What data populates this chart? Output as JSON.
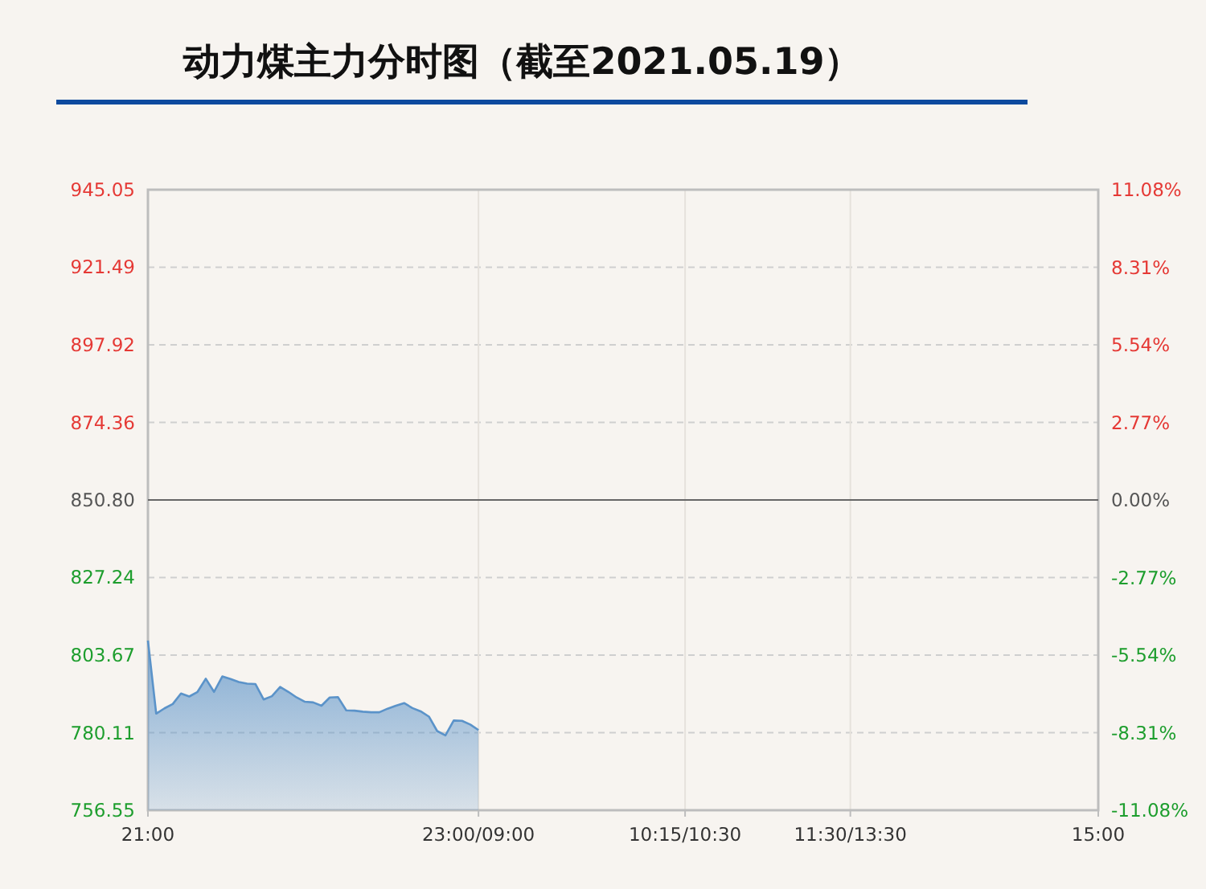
{
  "chart_data": {
    "type": "area",
    "title": "动力煤主力分时图（截至2021.05.19）",
    "categories": [
      "21:00",
      null,
      null,
      null,
      null,
      null,
      null,
      null,
      null,
      null,
      null,
      null,
      null,
      null,
      null,
      null,
      null,
      null,
      null,
      null,
      null,
      null,
      null,
      null,
      null,
      null,
      null,
      null,
      null,
      null,
      null,
      null,
      null,
      null,
      null,
      null,
      null,
      null,
      null,
      null,
      "23:00/09:00",
      null,
      null,
      null,
      null,
      null,
      null,
      null,
      null,
      null,
      null,
      null,
      null,
      null,
      null,
      null,
      null,
      null,
      null,
      null,
      null,
      null,
      null,
      null,
      null,
      "10:15/10:30",
      null,
      null,
      null,
      null,
      null,
      null,
      null,
      null,
      null,
      null,
      null,
      null,
      null,
      null,
      null,
      null,
      null,
      null,
      null,
      "11:30/13:30",
      null,
      null,
      null,
      null,
      null,
      null,
      null,
      null,
      null,
      null,
      null,
      null,
      null,
      null,
      null,
      null,
      null,
      null,
      null,
      null,
      null,
      null,
      null,
      null,
      null,
      null,
      null,
      null,
      null,
      "15:00"
    ],
    "ylim": [
      756.55,
      945.05
    ],
    "yticks": [
      756.55,
      780.11,
      803.67,
      827.24,
      {
        "value": 850.8,
        "label": "850.80"
      },
      874.36,
      897.92,
      921.49,
      945.05
    ],
    "y2lim": [
      -11.08,
      11.08
    ],
    "y2ticks": [
      {
        "value": -11.08,
        "label": "-11.08%"
      },
      {
        "value": -8.31,
        "label": "-8.31%"
      },
      {
        "value": -5.54,
        "label": "-5.54%"
      },
      {
        "value": -2.77,
        "label": "-2.77%"
      },
      {
        "value": 0,
        "label": "0.00%"
      },
      {
        "value": 2.77,
        "label": "2.77%"
      },
      {
        "value": 5.54,
        "label": "5.54%"
      },
      {
        "value": 8.31,
        "label": "8.31%"
      },
      {
        "value": 11.08,
        "label": "11.08%"
      }
    ],
    "ref_lines": [
      {
        "axis": "y",
        "value": 850.8,
        "color": "#666666"
      }
    ],
    "grid": true,
    "marker": "none",
    "line_style": "solid",
    "series": [
      {
        "color": "#5b93c9",
        "values": [
          808.1,
          785.9,
          787.5,
          788.8,
          792.0,
          791.1,
          792.5,
          796.5,
          792.5,
          797.2,
          796.4,
          795.5,
          795.0,
          794.9,
          790.2,
          791.2,
          794.0,
          792.5,
          790.8,
          789.5,
          789.3,
          788.3,
          790.8,
          790.9,
          786.9,
          786.8,
          786.5,
          786.3,
          786.3,
          787.4,
          788.3,
          789.1,
          787.6,
          786.6,
          785.0,
          780.6,
          779.3,
          783.8,
          783.7,
          782.6,
          780.9,
          null,
          null,
          null,
          null,
          null,
          null,
          null,
          null,
          null,
          null,
          null,
          null,
          null,
          null,
          null,
          null,
          null,
          null,
          null,
          null,
          null,
          null,
          null,
          null,
          null,
          null,
          null,
          null,
          null,
          null,
          null,
          null,
          null,
          null,
          null,
          null,
          null,
          null,
          null,
          null,
          null,
          null,
          null,
          null,
          null,
          null,
          null,
          null,
          null,
          null,
          null,
          null,
          null,
          null,
          null,
          null,
          null,
          null,
          null,
          null,
          null,
          null,
          null,
          null,
          null,
          null,
          null,
          null,
          null,
          null,
          null,
          null,
          null,
          null,
          null
        ]
      }
    ]
  }
}
